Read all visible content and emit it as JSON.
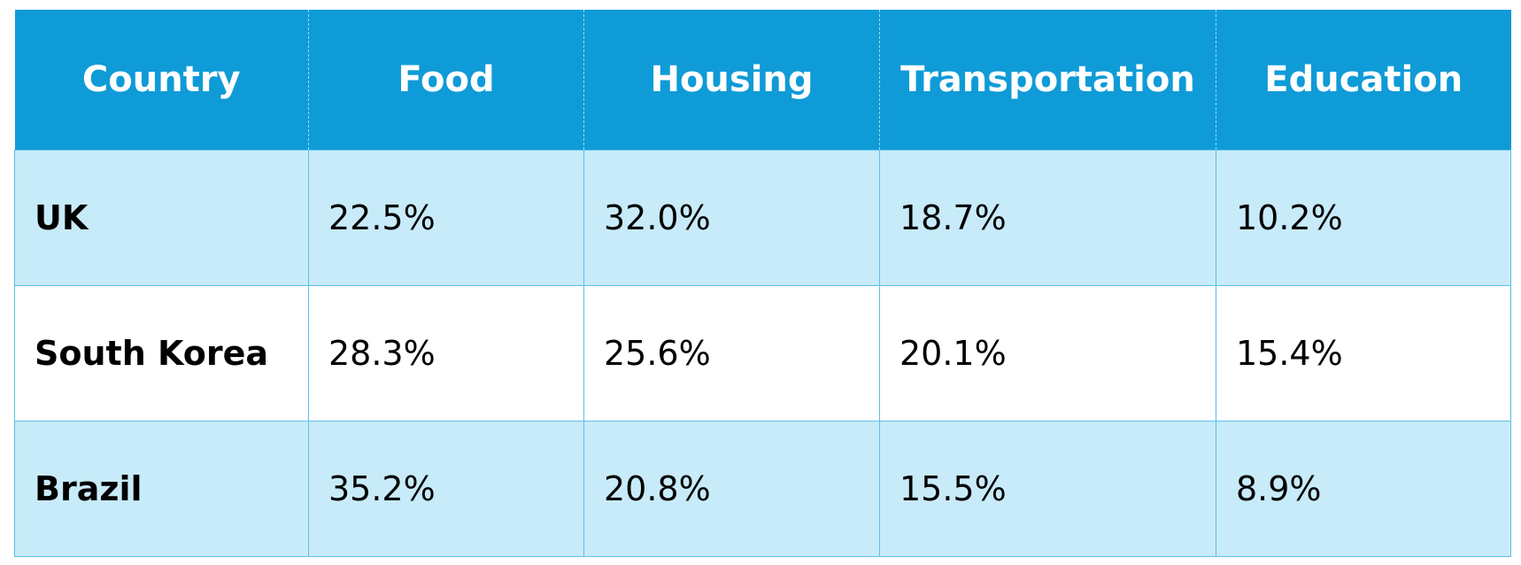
{
  "table": {
    "header": [
      "Country",
      "Food",
      "Housing",
      "Transportation",
      "Education"
    ],
    "rows": [
      [
        "UK",
        "22.5%",
        "32.0%",
        "18.7%",
        "10.2%"
      ],
      [
        "South Korea",
        "28.3%",
        "25.6%",
        "20.1%",
        "15.4%"
      ],
      [
        "Brazil",
        "35.2%",
        "20.8%",
        "15.5%",
        "8.9%"
      ]
    ]
  }
}
